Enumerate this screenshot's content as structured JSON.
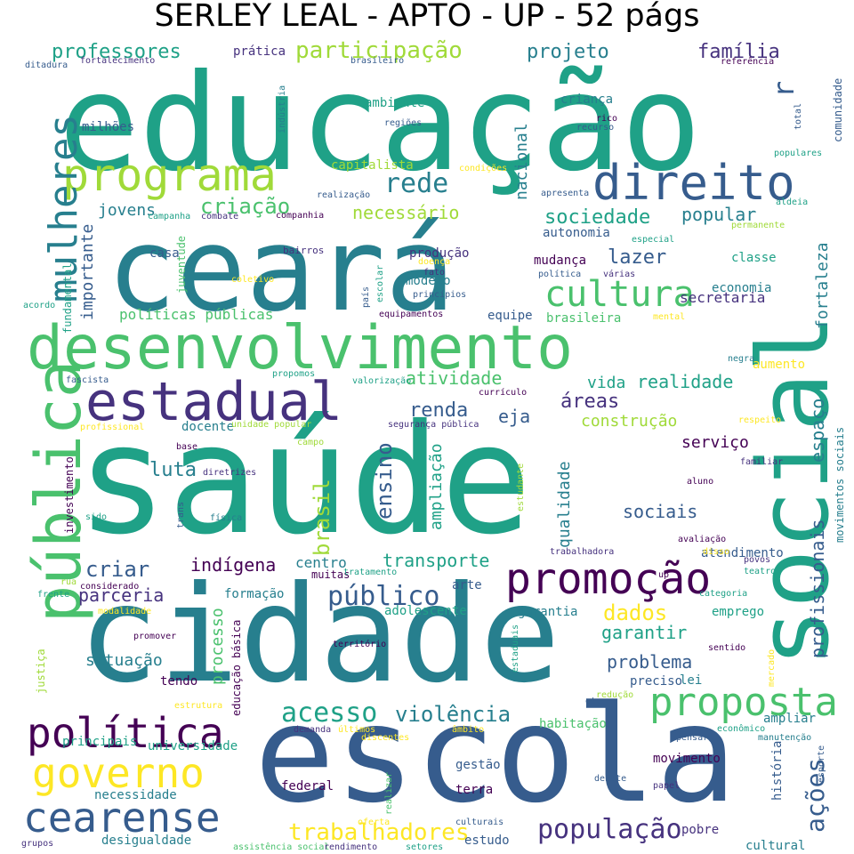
{
  "title": "SERLEY LEAL - APTO - UP - 52 págs",
  "palette": [
    "#440154",
    "#46327e",
    "#365c8d",
    "#277f8e",
    "#1fa187",
    "#4ac16d",
    "#a0da39",
    "#fde725"
  ],
  "words": [
    {
      "t": "saúde",
      "c": "#1fa187"
    },
    {
      "t": "educação",
      "c": "#1fa187"
    },
    {
      "t": "cidade",
      "c": "#277f8e"
    },
    {
      "t": "ceará",
      "c": "#277f8e"
    },
    {
      "t": "escola",
      "c": "#365c8d"
    },
    {
      "t": "social",
      "c": "#1fa187"
    },
    {
      "t": "desenvolvimento",
      "c": "#4ac16d"
    },
    {
      "t": "pública",
      "c": "#4ac16d"
    },
    {
      "t": "estadual",
      "c": "#46327e"
    },
    {
      "t": "programa",
      "c": "#a0da39"
    },
    {
      "t": "direito",
      "c": "#365c8d"
    },
    {
      "t": "promoção",
      "c": "#440154"
    },
    {
      "t": "política",
      "c": "#440154"
    },
    {
      "t": "governo",
      "c": "#fde725"
    },
    {
      "t": "cearense",
      "c": "#365c8d"
    },
    {
      "t": "proposta",
      "c": "#4ac16d"
    },
    {
      "t": "mulheres",
      "c": "#277f8e"
    },
    {
      "t": "cultura",
      "c": "#4ac16d"
    },
    {
      "t": "público",
      "c": "#365c8d"
    },
    {
      "t": "população",
      "c": "#46327e"
    },
    {
      "t": "trabalhadores",
      "c": "#fde725"
    },
    {
      "t": "rede",
      "c": "#277f8e"
    },
    {
      "t": "ações",
      "c": "#365c8d"
    },
    {
      "t": "acesso",
      "c": "#1fa187"
    },
    {
      "t": "violência",
      "c": "#277f8e"
    },
    {
      "t": "participação",
      "c": "#a0da39"
    },
    {
      "t": "professores",
      "c": "#1fa187"
    },
    {
      "t": "projeto",
      "c": "#277f8e"
    },
    {
      "t": "família",
      "c": "#46327e"
    },
    {
      "t": "criação",
      "c": "#4ac16d"
    },
    {
      "t": "necessário",
      "c": "#a0da39"
    },
    {
      "t": "sociedade",
      "c": "#1fa187"
    },
    {
      "t": "popular",
      "c": "#277f8e"
    },
    {
      "t": "lazer",
      "c": "#365c8d"
    },
    {
      "t": "renda",
      "c": "#365c8d"
    },
    {
      "t": "atividade",
      "c": "#4ac16d"
    },
    {
      "t": "realidade",
      "c": "#1fa187"
    },
    {
      "t": "áreas",
      "c": "#46327e"
    },
    {
      "t": "vida",
      "c": "#1fa187"
    },
    {
      "t": "eja",
      "c": "#365c8d"
    },
    {
      "t": "construção",
      "c": "#a0da39"
    },
    {
      "t": "serviço",
      "c": "#440154"
    },
    {
      "t": "luta",
      "c": "#277f8e"
    },
    {
      "t": "brasil",
      "c": "#a0da39"
    },
    {
      "t": "ensino",
      "c": "#365c8d"
    },
    {
      "t": "ampliação",
      "c": "#1fa187"
    },
    {
      "t": "qualidade",
      "c": "#277f8e"
    },
    {
      "t": "sociais",
      "c": "#365c8d"
    },
    {
      "t": "espaço",
      "c": "#277f8e"
    },
    {
      "t": "profissionais",
      "c": "#365c8d"
    },
    {
      "t": "criar",
      "c": "#365c8d"
    },
    {
      "t": "indígena",
      "c": "#440154"
    },
    {
      "t": "centro",
      "c": "#277f8e"
    },
    {
      "t": "transporte",
      "c": "#1fa187"
    },
    {
      "t": "parceria",
      "c": "#46327e"
    },
    {
      "t": "dados",
      "c": "#fde725"
    },
    {
      "t": "garantir",
      "c": "#1fa187"
    },
    {
      "t": "problema",
      "c": "#365c8d"
    },
    {
      "t": "situação",
      "c": "#277f8e"
    },
    {
      "t": "processo",
      "c": "#4ac16d"
    },
    {
      "t": "fortaleza",
      "c": "#277f8e"
    },
    {
      "t": "importante",
      "c": "#365c8d"
    },
    {
      "t": "jovens",
      "c": "#277f8e"
    },
    {
      "t": "nacional",
      "c": "#277f8e"
    },
    {
      "t": "políticas públicas",
      "c": "#4ac16d"
    },
    {
      "t": "ambiente",
      "c": "#1fa187"
    },
    {
      "t": "criança",
      "c": "#277f8e"
    },
    {
      "t": "capitalista",
      "c": "#a0da39"
    },
    {
      "t": "milhões",
      "c": "#365c8d"
    },
    {
      "t": "prática",
      "c": "#46327e"
    },
    {
      "t": "secretaria",
      "c": "#46327e"
    },
    {
      "t": "economia",
      "c": "#277f8e"
    },
    {
      "t": "autonomia",
      "c": "#365c8d"
    },
    {
      "t": "mudança",
      "c": "#440154"
    },
    {
      "t": "classe",
      "c": "#1fa187"
    },
    {
      "t": "produção",
      "c": "#46327e"
    },
    {
      "t": "modelo",
      "c": "#277f8e"
    },
    {
      "t": "casa",
      "c": "#365c8d"
    },
    {
      "t": "equipe",
      "c": "#365c8d"
    },
    {
      "t": "brasileira",
      "c": "#4ac16d"
    },
    {
      "t": "aumento",
      "c": "#fde725"
    },
    {
      "t": "docente",
      "c": "#277f8e"
    },
    {
      "t": "formação",
      "c": "#277f8e"
    },
    {
      "t": "arte",
      "c": "#365c8d"
    },
    {
      "t": "adolescente",
      "c": "#1fa187"
    },
    {
      "t": "garantia",
      "c": "#277f8e"
    },
    {
      "t": "emprego",
      "c": "#1fa187"
    },
    {
      "t": "atendimento",
      "c": "#365c8d"
    },
    {
      "t": "tendo",
      "c": "#440154"
    },
    {
      "t": "lei",
      "c": "#277f8e"
    },
    {
      "t": "preciso",
      "c": "#365c8d"
    },
    {
      "t": "habitação",
      "c": "#4ac16d"
    },
    {
      "t": "ampliar",
      "c": "#277f8e"
    },
    {
      "t": "principais",
      "c": "#1fa187"
    },
    {
      "t": "universidade",
      "c": "#1fa187"
    },
    {
      "t": "movimento",
      "c": "#440154"
    },
    {
      "t": "gestão",
      "c": "#365c8d"
    },
    {
      "t": "federal",
      "c": "#440154"
    },
    {
      "t": "terra",
      "c": "#440154"
    },
    {
      "t": "estudo",
      "c": "#365c8d"
    },
    {
      "t": "pobre",
      "c": "#46327e"
    },
    {
      "t": "cultural",
      "c": "#277f8e"
    },
    {
      "t": "desigualdade",
      "c": "#277f8e"
    },
    {
      "t": "necessidade",
      "c": "#277f8e"
    },
    {
      "t": "história",
      "c": "#365c8d"
    },
    {
      "t": "comunidade",
      "c": "#365c8d"
    },
    {
      "t": "juventude",
      "c": "#4ac16d"
    },
    {
      "t": "fundamental",
      "c": "#1fa187"
    },
    {
      "t": "investimento",
      "c": "#440154"
    },
    {
      "t": "educação básica",
      "c": "#440154"
    },
    {
      "t": "movimentos sociais",
      "c": "#277f8e"
    },
    {
      "t": "r",
      "c": "#365c8d"
    },
    {
      "t": "bairros",
      "c": "#46327e"
    },
    {
      "t": "regiões",
      "c": "#365c8d"
    },
    {
      "t": "rico",
      "c": "#440154"
    },
    {
      "t": "recurso",
      "c": "#365c8d"
    },
    {
      "t": "total",
      "c": "#365c8d"
    },
    {
      "t": "indústria",
      "c": "#277f8e"
    },
    {
      "t": "condições",
      "c": "#fde725"
    },
    {
      "t": "realização",
      "c": "#365c8d"
    },
    {
      "t": "apresenta",
      "c": "#365c8d"
    },
    {
      "t": "aldeia",
      "c": "#1fa187"
    },
    {
      "t": "combate",
      "c": "#46327e"
    },
    {
      "t": "companhia",
      "c": "#440154"
    },
    {
      "t": "campanha",
      "c": "#1fa187"
    },
    {
      "t": "especial",
      "c": "#1fa187"
    },
    {
      "t": "permanente",
      "c": "#a0da39"
    },
    {
      "t": "política",
      "c": "#365c8d"
    },
    {
      "t": "várias",
      "c": "#46327e"
    },
    {
      "t": "mental",
      "c": "#fde725"
    },
    {
      "t": "coletivo",
      "c": "#fde725"
    },
    {
      "t": "doença",
      "c": "#fde725"
    },
    {
      "t": "fato",
      "c": "#46327e"
    },
    {
      "t": "escolar",
      "c": "#1fa187"
    },
    {
      "t": "país",
      "c": "#365c8d"
    },
    {
      "t": "princípios",
      "c": "#365c8d"
    },
    {
      "t": "equipamentos",
      "c": "#440154"
    },
    {
      "t": "acordo",
      "c": "#1fa187"
    },
    {
      "t": "negra",
      "c": "#277f8e"
    },
    {
      "t": "propomos",
      "c": "#1fa187"
    },
    {
      "t": "valorização",
      "c": "#1fa187"
    },
    {
      "t": "currículo",
      "c": "#440154"
    },
    {
      "t": "fascista",
      "c": "#365c8d"
    },
    {
      "t": "profissional",
      "c": "#fde725"
    },
    {
      "t": "unidade popular",
      "c": "#a0da39"
    },
    {
      "t": "segurança pública",
      "c": "#46327e"
    },
    {
      "t": "respeito",
      "c": "#fde725"
    },
    {
      "t": "base",
      "c": "#440154"
    },
    {
      "t": "campo",
      "c": "#a0da39"
    },
    {
      "t": "familiar",
      "c": "#46327e"
    },
    {
      "t": "diretrizes",
      "c": "#46327e"
    },
    {
      "t": "estudante",
      "c": "#a0da39"
    },
    {
      "t": "aluno",
      "c": "#440154"
    },
    {
      "t": "sido",
      "c": "#1fa187"
    },
    {
      "t": "trans",
      "c": "#365c8d"
    },
    {
      "t": "física",
      "c": "#277f8e"
    },
    {
      "t": "avaliação",
      "c": "#440154"
    },
    {
      "t": "trabalhadora",
      "c": "#46327e"
    },
    {
      "t": "disso",
      "c": "#fde725"
    },
    {
      "t": "povos",
      "c": "#46327e"
    },
    {
      "t": "teatro",
      "c": "#1fa187"
    },
    {
      "t": "muitas",
      "c": "#440154"
    },
    {
      "t": "tratamento",
      "c": "#1fa187"
    },
    {
      "t": "considerado",
      "c": "#440154"
    },
    {
      "t": "rua",
      "c": "#a0da39"
    },
    {
      "t": "up",
      "c": "#440154"
    },
    {
      "t": "categoria",
      "c": "#1fa187"
    },
    {
      "t": "frente",
      "c": "#1fa187"
    },
    {
      "t": "modalidade",
      "c": "#fde725"
    },
    {
      "t": "promover",
      "c": "#440154"
    },
    {
      "t": "território",
      "c": "#440154"
    },
    {
      "t": "sentido",
      "c": "#440154"
    },
    {
      "t": "justiça",
      "c": "#a0da39"
    },
    {
      "t": "estaduais",
      "c": "#1fa187"
    },
    {
      "t": "redução",
      "c": "#a0da39"
    },
    {
      "t": "mercado",
      "c": "#fde725"
    },
    {
      "t": "estrutura",
      "c": "#fde725"
    },
    {
      "t": "etc",
      "c": "#365c8d"
    },
    {
      "t": "demanda",
      "c": "#46327e"
    },
    {
      "t": "últimos",
      "c": "#fde725"
    },
    {
      "t": "âmbito",
      "c": "#fde725"
    },
    {
      "t": "econômico",
      "c": "#1fa187"
    },
    {
      "t": "manutenção",
      "c": "#277f8e"
    },
    {
      "t": "pensar",
      "c": "#365c8d"
    },
    {
      "t": "discentes",
      "c": "#fde725"
    },
    {
      "t": "debate",
      "c": "#365c8d"
    },
    {
      "t": "papel",
      "c": "#46327e"
    },
    {
      "t": "esporte",
      "c": "#365c8d"
    },
    {
      "t": "realizar",
      "c": "#4ac16d"
    },
    {
      "t": "oferta",
      "c": "#fde725"
    },
    {
      "t": "culturais",
      "c": "#365c8d"
    },
    {
      "t": "grupos",
      "c": "#46327e"
    },
    {
      "t": "assistência social",
      "c": "#4ac16d"
    },
    {
      "t": "rendimento",
      "c": "#46327e"
    },
    {
      "t": "setores",
      "c": "#1fa187"
    },
    {
      "t": "ditadura",
      "c": "#365c8d"
    },
    {
      "t": "fortalecimento",
      "c": "#46327e"
    },
    {
      "t": "brasileiro",
      "c": "#365c8d"
    },
    {
      "t": "referência",
      "c": "#440154"
    },
    {
      "t": "populares",
      "c": "#1fa187"
    }
  ]
}
